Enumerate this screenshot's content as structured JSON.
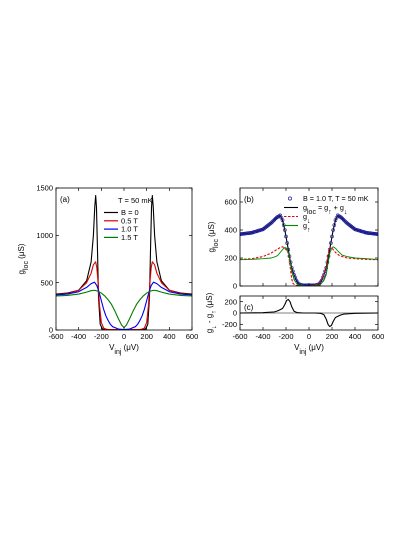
{
  "chart_data": [
    {
      "id": "a",
      "type": "line",
      "panel_label": "(a)",
      "annotation": "T = 50 mK",
      "xlabel": "V",
      "xlabel_sub": "inj",
      "xlabel_unit": " (μV)",
      "ylabel": "g",
      "ylabel_sub": "loc",
      "ylabel_unit": " (μS)",
      "xlim": [
        -600,
        600
      ],
      "ylim": [
        0,
        1500
      ],
      "xticks": [
        -600,
        -400,
        -200,
        0,
        200,
        400,
        600
      ],
      "yticks": [
        0,
        500,
        1000,
        1500
      ],
      "legend_position": "top-right",
      "series": [
        {
          "name": "B = 0",
          "color": "#000000",
          "x": [
            -600,
            -500,
            -400,
            -330,
            -290,
            -270,
            -258,
            -250,
            -243,
            -235,
            -225,
            -210,
            -190,
            -170,
            -150,
            -100,
            -50,
            0,
            50,
            100,
            150,
            170,
            190,
            210,
            225,
            235,
            243,
            250,
            258,
            270,
            290,
            330,
            400,
            500,
            600
          ],
          "y": [
            380,
            390,
            420,
            520,
            720,
            1000,
            1300,
            1420,
            1300,
            900,
            350,
            60,
            10,
            5,
            5,
            5,
            5,
            5,
            5,
            5,
            5,
            5,
            10,
            60,
            350,
            900,
            1300,
            1420,
            1300,
            1000,
            720,
            520,
            420,
            390,
            380
          ]
        },
        {
          "name": "0.5 T",
          "color": "#dd0000",
          "x": [
            -600,
            -500,
            -400,
            -330,
            -290,
            -270,
            -250,
            -240,
            -230,
            -215,
            -200,
            -180,
            -160,
            -140,
            -100,
            -50,
            0,
            50,
            100,
            140,
            160,
            180,
            200,
            215,
            230,
            240,
            250,
            270,
            290,
            330,
            400,
            500,
            600
          ],
          "y": [
            375,
            385,
            420,
            500,
            600,
            690,
            720,
            660,
            520,
            250,
            80,
            20,
            10,
            5,
            5,
            5,
            5,
            5,
            5,
            5,
            10,
            20,
            80,
            250,
            520,
            660,
            720,
            690,
            600,
            500,
            420,
            385,
            375
          ]
        },
        {
          "name": "1.0 T",
          "color": "#0000ee",
          "x": [
            -600,
            -500,
            -400,
            -330,
            -290,
            -260,
            -240,
            -220,
            -200,
            -180,
            -160,
            -140,
            -120,
            -100,
            -50,
            0,
            50,
            100,
            120,
            140,
            160,
            180,
            200,
            220,
            240,
            260,
            290,
            330,
            400,
            500,
            600
          ],
          "y": [
            370,
            380,
            405,
            450,
            490,
            505,
            470,
            400,
            310,
            220,
            150,
            100,
            60,
            35,
            10,
            5,
            10,
            35,
            60,
            100,
            150,
            220,
            310,
            400,
            470,
            505,
            490,
            450,
            405,
            380,
            370
          ]
        },
        {
          "name": "1.5 T",
          "color": "#007a00",
          "x": [
            -600,
            -500,
            -400,
            -330,
            -290,
            -260,
            -230,
            -200,
            -170,
            -140,
            -110,
            -80,
            -50,
            -20,
            0,
            20,
            50,
            80,
            110,
            140,
            170,
            200,
            230,
            260,
            290,
            330,
            400,
            500,
            600
          ],
          "y": [
            360,
            365,
            380,
            400,
            415,
            420,
            410,
            390,
            360,
            320,
            270,
            200,
            120,
            50,
            25,
            50,
            120,
            200,
            270,
            320,
            360,
            390,
            410,
            420,
            415,
            400,
            380,
            365,
            360
          ]
        }
      ]
    },
    {
      "id": "b",
      "type": "line",
      "panel_label": "(b)",
      "annotation": "B = 1.0 T, T = 50 mK",
      "xlabel": "",
      "ylabel": "g",
      "ylabel_sub": "loc",
      "ylabel_unit": " (μS)",
      "xlim": [
        -600,
        600
      ],
      "ylim": [
        0,
        700
      ],
      "xticks": [
        -600,
        -400,
        -200,
        0,
        200,
        400,
        600
      ],
      "yticks": [
        0,
        200,
        400,
        600
      ],
      "legend_position": "top-right",
      "legend": [
        {
          "main": "B = 1.0 T, T = 50 mK",
          "sub": "",
          "rest": "",
          "sub2": "",
          "style": "marker"
        },
        {
          "main": "g",
          "sub": "loc",
          "rest": " = g",
          "sub2": "↑",
          "rest2": " + g",
          "sub3": "↓",
          "style": "solid"
        },
        {
          "main": "g",
          "sub": "↓",
          "rest": "",
          "sub2": "",
          "style": "dashed"
        },
        {
          "main": "g",
          "sub": "↑",
          "rest": "",
          "sub2": "",
          "style": "solid-thin"
        }
      ],
      "series": [
        {
          "name": "g_loc = g_up + g_down",
          "color": "#000000",
          "style": "solid",
          "x": [
            -600,
            -500,
            -400,
            -330,
            -280,
            -250,
            -230,
            -210,
            -195,
            -180,
            -165,
            -150,
            -130,
            -110,
            -90,
            -70,
            -50,
            0,
            50,
            70,
            90,
            110,
            130,
            150,
            165,
            180,
            195,
            210,
            230,
            250,
            280,
            330,
            400,
            500,
            600
          ],
          "y": [
            370,
            380,
            405,
            450,
            490,
            505,
            470,
            400,
            330,
            260,
            190,
            130,
            80,
            40,
            15,
            8,
            5,
            5,
            5,
            8,
            15,
            40,
            80,
            130,
            190,
            260,
            330,
            400,
            470,
            505,
            490,
            450,
            405,
            380,
            370
          ]
        },
        {
          "name": "data points",
          "color": "#1a1a99",
          "style": "marker",
          "ref": 0
        },
        {
          "name": "g_down",
          "color": "#ee0000",
          "style": "dashed",
          "x": [
            -600,
            -500,
            -400,
            -330,
            -280,
            -250,
            -230,
            -210,
            -195,
            -180,
            -170,
            -160,
            -150,
            -140,
            -120,
            -90,
            -50,
            0,
            50,
            90,
            120,
            150,
            165,
            175,
            185,
            200,
            230,
            260,
            290,
            330,
            400,
            500,
            600
          ],
          "y": [
            190,
            195,
            210,
            235,
            260,
            275,
            280,
            270,
            255,
            235,
            180,
            110,
            50,
            20,
            5,
            2,
            0,
            0,
            5,
            20,
            60,
            140,
            220,
            260,
            275,
            270,
            240,
            220,
            210,
            200,
            195,
            190,
            188
          ]
        },
        {
          "name": "g_up",
          "color": "#008800",
          "style": "solid-thin",
          "x": [
            -600,
            -500,
            -400,
            -330,
            -290,
            -270,
            -250,
            -230,
            -210,
            -195,
            -180,
            -165,
            -150,
            -130,
            -100,
            -50,
            0,
            50,
            100,
            130,
            150,
            165,
            180,
            195,
            210,
            230,
            250,
            270,
            290,
            330,
            400,
            500,
            600
          ],
          "y": [
            188,
            190,
            195,
            200,
            210,
            220,
            240,
            260,
            275,
            270,
            240,
            180,
            110,
            45,
            10,
            2,
            0,
            2,
            10,
            40,
            80,
            160,
            230,
            270,
            280,
            270,
            250,
            235,
            220,
            210,
            200,
            195,
            190
          ]
        }
      ]
    },
    {
      "id": "c",
      "type": "line",
      "panel_label": "(c)",
      "xlabel": "V",
      "xlabel_sub": "inj",
      "xlabel_unit": " (μV)",
      "ylabel": "g",
      "ylabel_sub": "↓",
      "ylabel_mid": " - g",
      "ylabel_sub2": "↑",
      "ylabel_unit": " (μS)",
      "xlim": [
        -600,
        600
      ],
      "ylim": [
        -300,
        300
      ],
      "xticks": [
        -600,
        -400,
        -200,
        0,
        200,
        400,
        600
      ],
      "yticks": [
        -200,
        0,
        200
      ],
      "series": [
        {
          "name": "g_down - g_up",
          "color": "#000000",
          "x": [
            -600,
            -400,
            -300,
            -270,
            -250,
            -230,
            -210,
            -195,
            -180,
            -165,
            -150,
            -130,
            -100,
            -50,
            0,
            50,
            100,
            130,
            150,
            165,
            180,
            195,
            210,
            230,
            250,
            270,
            300,
            400,
            600
          ],
          "y": [
            0,
            5,
            20,
            40,
            60,
            80,
            150,
            220,
            240,
            200,
            110,
            30,
            5,
            0,
            0,
            0,
            -5,
            -30,
            -110,
            -200,
            -240,
            -220,
            -150,
            -80,
            -60,
            -40,
            -20,
            -5,
            0
          ]
        }
      ]
    }
  ]
}
